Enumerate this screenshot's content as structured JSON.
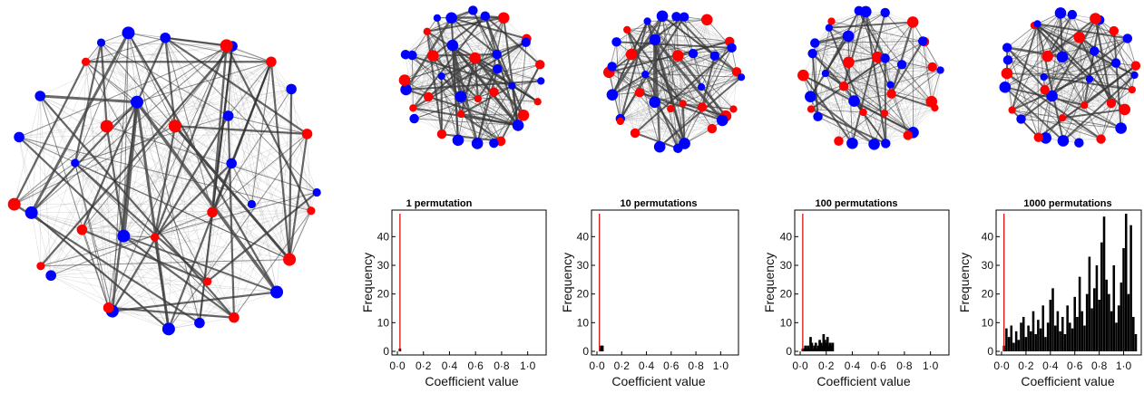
{
  "colors": {
    "group_a": "#ff0000",
    "group_b": "#0000ff",
    "edge": "#333333",
    "observed_line": "#d00000",
    "bars": "#000000"
  },
  "chart_data": [
    {
      "type": "network",
      "nodes": [
        {
          "group": "b",
          "size": "small"
        },
        {
          "group": "a",
          "size": "small"
        },
        {
          "group": "a",
          "size": "large"
        },
        {
          "group": "a",
          "size": "medium"
        },
        {
          "group": "b",
          "size": "large"
        },
        {
          "group": "a",
          "size": "medium"
        },
        {
          "group": "a",
          "size": "small"
        },
        {
          "group": "b",
          "size": "medium"
        },
        {
          "group": "b",
          "size": "large"
        },
        {
          "group": "a",
          "size": "small"
        },
        {
          "group": "b",
          "size": "large"
        },
        {
          "group": "a",
          "size": "medium"
        },
        {
          "group": "b",
          "size": "large"
        },
        {
          "group": "b",
          "size": "medium"
        },
        {
          "group": "a",
          "size": "small"
        },
        {
          "group": "a",
          "size": "medium"
        },
        {
          "group": "b",
          "size": "large"
        },
        {
          "group": "a",
          "size": "large"
        },
        {
          "group": "b",
          "size": "small"
        },
        {
          "group": "b",
          "size": "medium"
        },
        {
          "group": "b",
          "size": "medium"
        },
        {
          "group": "a",
          "size": "large"
        },
        {
          "group": "a",
          "size": "small"
        },
        {
          "group": "b",
          "size": "small"
        },
        {
          "group": "b",
          "size": "large"
        },
        {
          "group": "b",
          "size": "large"
        },
        {
          "group": "b",
          "size": "medium"
        },
        {
          "group": "a",
          "size": "large"
        },
        {
          "group": "b",
          "size": "medium"
        },
        {
          "group": "a",
          "size": "large"
        },
        {
          "group": "b",
          "size": "medium"
        },
        {
          "group": "a",
          "size": "medium"
        },
        {
          "group": "b",
          "size": "medium"
        },
        {
          "group": "b",
          "size": "medium"
        },
        {
          "group": "a",
          "size": "medium"
        },
        {
          "group": "b",
          "size": "small"
        }
      ]
    },
    {
      "type": "bar",
      "title": "1 permutation",
      "xlabel": "Coefficient value",
      "ylabel": "Frequency",
      "xlim": [
        0,
        1.1
      ],
      "ylim": [
        0,
        48
      ],
      "xticks": [
        "0·0",
        "0·2",
        "0·4",
        "0·6",
        "0·8",
        "1·0"
      ],
      "yticks": [
        "0",
        "10",
        "20",
        "30",
        "40"
      ],
      "observed": 0.02,
      "bars": [
        [
          0.02,
          1
        ]
      ]
    },
    {
      "type": "bar",
      "title": "10 permutations",
      "xlabel": "Coefficient value",
      "ylabel": "Frequency",
      "xlim": [
        0,
        1.1
      ],
      "ylim": [
        0,
        48
      ],
      "xticks": [
        "0·0",
        "0·2",
        "0·4",
        "0·6",
        "0·8",
        "1·0"
      ],
      "yticks": [
        "0",
        "10",
        "20",
        "30",
        "40"
      ],
      "observed": 0.02,
      "bars": [
        [
          0.03,
          1
        ],
        [
          0.035,
          2
        ],
        [
          0.04,
          1
        ],
        [
          0.045,
          2
        ]
      ]
    },
    {
      "type": "bar",
      "title": "100 permutations",
      "xlabel": "Coefficient value",
      "ylabel": "Frequency",
      "xlim": [
        0,
        1.1
      ],
      "ylim": [
        0,
        48
      ],
      "xticks": [
        "0·0",
        "0·2",
        "0·4",
        "0·6",
        "0·8",
        "1·0"
      ],
      "yticks": [
        "0",
        "10",
        "20",
        "30",
        "40"
      ],
      "observed": 0.02,
      "bars": [
        [
          0.02,
          1
        ],
        [
          0.03,
          1
        ],
        [
          0.04,
          2
        ],
        [
          0.05,
          1
        ],
        [
          0.06,
          2
        ],
        [
          0.07,
          1
        ],
        [
          0.08,
          5
        ],
        [
          0.09,
          3
        ],
        [
          0.1,
          1
        ],
        [
          0.11,
          2
        ],
        [
          0.12,
          3
        ],
        [
          0.13,
          1
        ],
        [
          0.14,
          2
        ],
        [
          0.15,
          4
        ],
        [
          0.16,
          3
        ],
        [
          0.17,
          2
        ],
        [
          0.18,
          6
        ],
        [
          0.19,
          4
        ],
        [
          0.2,
          3
        ],
        [
          0.21,
          5
        ],
        [
          0.22,
          2
        ],
        [
          0.23,
          3
        ],
        [
          0.24,
          2
        ],
        [
          0.25,
          3
        ]
      ]
    },
    {
      "type": "bar",
      "title": "1000 permutations",
      "xlabel": "Coefficient value",
      "ylabel": "Frequency",
      "xlim": [
        0,
        1.1
      ],
      "ylim": [
        0,
        48
      ],
      "xticks": [
        "0·0",
        "0·2",
        "0·4",
        "0·6",
        "0·8",
        "1·0"
      ],
      "yticks": [
        "0",
        "10",
        "20",
        "30",
        "40"
      ],
      "observed": 0.02,
      "bars": [
        [
          0.02,
          2
        ],
        [
          0.04,
          8
        ],
        [
          0.06,
          5
        ],
        [
          0.08,
          9
        ],
        [
          0.1,
          3
        ],
        [
          0.12,
          7
        ],
        [
          0.14,
          4
        ],
        [
          0.16,
          10
        ],
        [
          0.18,
          12
        ],
        [
          0.2,
          5
        ],
        [
          0.22,
          9
        ],
        [
          0.24,
          7
        ],
        [
          0.26,
          14
        ],
        [
          0.28,
          6
        ],
        [
          0.3,
          11
        ],
        [
          0.32,
          8
        ],
        [
          0.34,
          16
        ],
        [
          0.36,
          5
        ],
        [
          0.38,
          10
        ],
        [
          0.4,
          18
        ],
        [
          0.42,
          22
        ],
        [
          0.44,
          9
        ],
        [
          0.46,
          14
        ],
        [
          0.48,
          7
        ],
        [
          0.5,
          12
        ],
        [
          0.52,
          6
        ],
        [
          0.54,
          16
        ],
        [
          0.56,
          10
        ],
        [
          0.58,
          8
        ],
        [
          0.6,
          19
        ],
        [
          0.62,
          12
        ],
        [
          0.64,
          26
        ],
        [
          0.66,
          14
        ],
        [
          0.68,
          9
        ],
        [
          0.7,
          20
        ],
        [
          0.72,
          33
        ],
        [
          0.74,
          15
        ],
        [
          0.76,
          22
        ],
        [
          0.78,
          30
        ],
        [
          0.8,
          18
        ],
        [
          0.82,
          38
        ],
        [
          0.84,
          47
        ],
        [
          0.86,
          25
        ],
        [
          0.88,
          20
        ],
        [
          0.9,
          14
        ],
        [
          0.92,
          30
        ],
        [
          0.94,
          10
        ],
        [
          0.96,
          16
        ],
        [
          0.98,
          24
        ],
        [
          1.0,
          36
        ],
        [
          1.02,
          48
        ],
        [
          1.04,
          20
        ],
        [
          1.06,
          44
        ],
        [
          1.08,
          12
        ],
        [
          1.1,
          6
        ]
      ]
    }
  ]
}
